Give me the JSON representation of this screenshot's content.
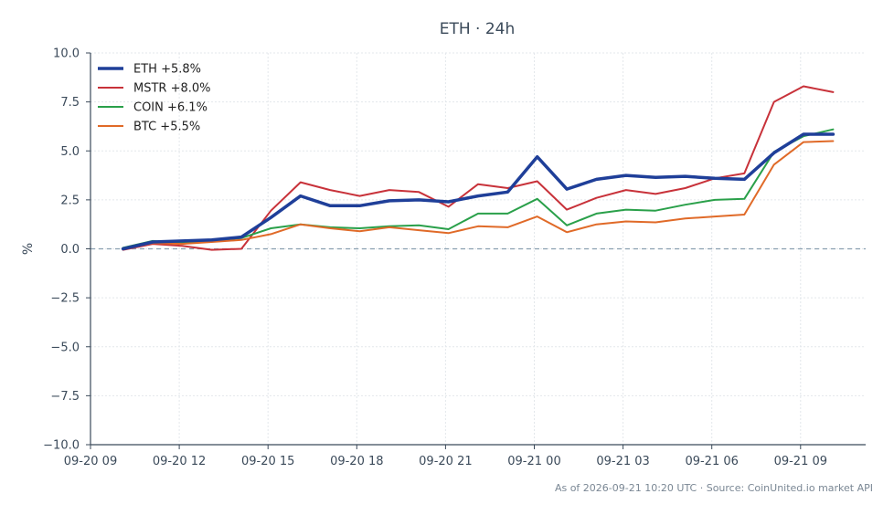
{
  "chart_data": {
    "type": "line",
    "title": "ETH · 24h",
    "xlabel": "",
    "ylabel": "%",
    "ylim": [
      -10,
      10
    ],
    "yticks": [
      10.0,
      7.5,
      5.0,
      2.5,
      0.0,
      -2.5,
      -5.0,
      -7.5,
      -10.0
    ],
    "ytick_labels": [
      "10.0",
      "7.5",
      "5.0",
      "2.5",
      "0.0",
      "−2.5",
      "−5.0",
      "−7.5",
      "−10.0"
    ],
    "xlim": [
      0,
      26.2
    ],
    "xticks": [
      0,
      3,
      6,
      9,
      12,
      15,
      18,
      21,
      24
    ],
    "xtick_labels": [
      "09-20 09",
      "09-20 12",
      "09-20 15",
      "09-20 18",
      "09-20 21",
      "09-21 00",
      "09-21 03",
      "09-21 06",
      "09-21 09"
    ],
    "x": [
      1.1,
      2.1,
      3.1,
      4.1,
      5.1,
      6.1,
      7.1,
      8.1,
      9.1,
      10.1,
      11.1,
      12.1,
      13.1,
      14.1,
      15.1,
      16.1,
      17.1,
      18.1,
      19.1,
      20.1,
      21.1,
      22.1,
      23.1,
      24.1,
      25.1
    ],
    "grid": true,
    "zero_line": true,
    "legend_position": "top-left",
    "series": [
      {
        "name": "ETH +5.8%",
        "color": "#1f3f99",
        "width": 3.5,
        "values": [
          0.0,
          0.35,
          0.4,
          0.45,
          0.6,
          1.6,
          2.7,
          2.2,
          2.2,
          2.45,
          2.5,
          2.4,
          2.7,
          2.9,
          4.7,
          3.05,
          3.55,
          3.75,
          3.65,
          3.7,
          3.6,
          3.55,
          4.9,
          5.85,
          5.85
        ]
      },
      {
        "name": "MSTR +8.0%",
        "color": "#c8323a",
        "width": 2,
        "values": [
          -0.05,
          0.25,
          0.15,
          -0.05,
          0.0,
          1.95,
          3.4,
          3.0,
          2.7,
          3.0,
          2.9,
          2.15,
          3.3,
          3.1,
          3.45,
          2.0,
          2.6,
          3.0,
          2.8,
          3.1,
          3.6,
          3.85,
          7.5,
          8.3,
          8.0
        ]
      },
      {
        "name": "COIN +6.1%",
        "color": "#2aa04a",
        "width": 2,
        "values": [
          0.05,
          0.4,
          0.3,
          0.4,
          0.55,
          1.05,
          1.25,
          1.1,
          1.05,
          1.15,
          1.2,
          1.0,
          1.8,
          1.8,
          2.55,
          1.2,
          1.8,
          2.0,
          1.95,
          2.25,
          2.5,
          2.55,
          4.95,
          5.75,
          6.1
        ]
      },
      {
        "name": "BTC +5.5%",
        "color": "#e06a28",
        "width": 2,
        "values": [
          0.0,
          0.3,
          0.25,
          0.35,
          0.45,
          0.75,
          1.25,
          1.05,
          0.9,
          1.1,
          0.95,
          0.8,
          1.15,
          1.1,
          1.65,
          0.85,
          1.25,
          1.4,
          1.35,
          1.55,
          1.65,
          1.75,
          4.3,
          5.45,
          5.5
        ]
      }
    ],
    "footer": "As of 2026-09-21 10:20 UTC · Source: CoinUnited.io market API"
  }
}
